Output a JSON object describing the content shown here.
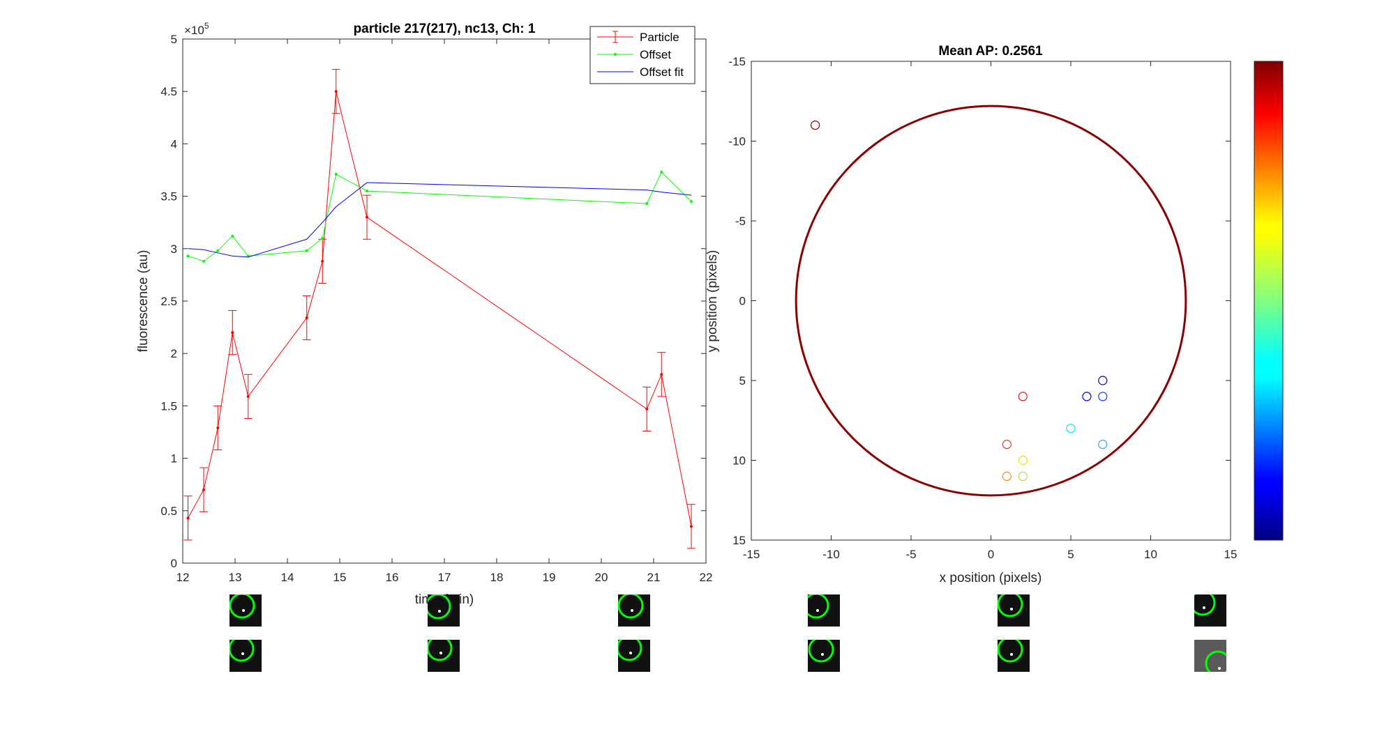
{
  "chart_data": [
    {
      "type": "line",
      "title": "particle 217(217), nc13, Ch: 1",
      "xlabel": "time (min)",
      "ylabel": "fluorescence (au)",
      "exponent_label": "×10",
      "exponent_power": "5",
      "xlim": [
        12,
        22
      ],
      "ylim": [
        0,
        5
      ],
      "xticks": [
        "12",
        "13",
        "14",
        "15",
        "16",
        "17",
        "18",
        "19",
        "20",
        "21",
        "22"
      ],
      "yticks": [
        "0",
        "0.5",
        "1",
        "1.5",
        "2",
        "2.5",
        "3",
        "3.5",
        "4",
        "4.5",
        "5"
      ],
      "legend_position": "top-right",
      "series": [
        {
          "name": "Particle",
          "color": "#ff0000",
          "x": [
            12.1,
            12.4,
            12.67,
            12.95,
            13.25,
            14.37,
            14.67,
            14.93,
            15.52,
            20.87,
            21.15,
            21.72
          ],
          "values": [
            0.43,
            0.7,
            1.29,
            2.2,
            1.59,
            2.34,
            2.88,
            4.5,
            3.3,
            1.47,
            1.8,
            0.35
          ],
          "err": [
            0.21,
            0.21,
            0.21,
            0.21,
            0.21,
            0.21,
            0.21,
            0.21,
            0.21,
            0.21,
            0.21,
            0.21
          ],
          "error_bars": true,
          "marker": "dot"
        },
        {
          "name": "Offset",
          "color": "#00ff00",
          "x": [
            12.1,
            12.4,
            12.67,
            12.95,
            13.25,
            14.37,
            14.67,
            14.93,
            15.52,
            20.87,
            21.15,
            21.72
          ],
          "values": [
            2.93,
            2.88,
            2.98,
            3.12,
            2.93,
            2.98,
            3.1,
            3.71,
            3.55,
            3.43,
            3.73,
            3.45
          ],
          "marker": "dot"
        },
        {
          "name": "Offset fit",
          "color": "#0000ff",
          "x": [
            12.1,
            12.4,
            12.67,
            12.95,
            13.25,
            14.37,
            14.67,
            14.93,
            15.52,
            20.87,
            21.15,
            21.72
          ],
          "values": [
            3.0,
            2.99,
            2.96,
            2.93,
            2.92,
            3.09,
            3.25,
            3.4,
            3.63,
            3.56,
            3.54,
            3.51
          ]
        }
      ]
    },
    {
      "type": "scatter",
      "title": "Mean AP: 0.2561",
      "xlabel": "x position (pixels)",
      "ylabel": "y position (pixels)",
      "xlim": [
        -15,
        15
      ],
      "ylim": [
        -15,
        15
      ],
      "y_direction": "reversed",
      "xticks": [
        "-15",
        "-10",
        "-5",
        "0",
        "5",
        "10",
        "15"
      ],
      "yticks": [
        "-15",
        "-10",
        "-5",
        "0",
        "5",
        "10",
        "15"
      ],
      "boundary_circle": {
        "cx": 0,
        "cy": 0,
        "r": 12.2,
        "color": "#8b0000"
      },
      "points": [
        {
          "x": -11,
          "y": -11,
          "color": "#8b0000"
        },
        {
          "x": 2,
          "y": 6,
          "color": "#d62020"
        },
        {
          "x": 1,
          "y": 9,
          "color": "#e83a1f"
        },
        {
          "x": 1,
          "y": 11,
          "color": "#ff8c00"
        },
        {
          "x": 2,
          "y": 10,
          "color": "#e6e600"
        },
        {
          "x": 2,
          "y": 11,
          "color": "#a8e63c"
        },
        {
          "x": 5,
          "y": 8,
          "color": "#00e5ff"
        },
        {
          "x": 7,
          "y": 9,
          "color": "#3aa0ff"
        },
        {
          "x": 6,
          "y": 6,
          "color": "#0000d0"
        },
        {
          "x": 7,
          "y": 6,
          "color": "#1a3aff"
        },
        {
          "x": 7,
          "y": 5,
          "color": "#0000b0"
        }
      ],
      "colorbar": {
        "colormap": "jet",
        "ticks": []
      }
    }
  ],
  "thumbnails": {
    "count_per_row": 6,
    "rows": 2,
    "ring_color": "#00ff00"
  }
}
